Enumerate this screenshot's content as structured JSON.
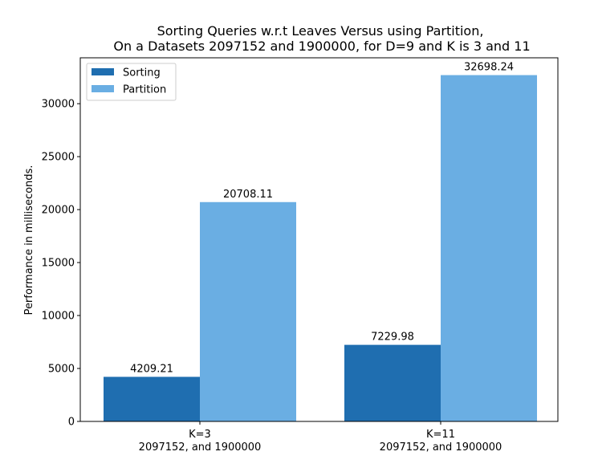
{
  "chart_data": {
    "type": "bar",
    "title": "Sorting Queries w.r.t Leaves Versus using Partition,",
    "subtitle": "On a Datasets 2097152 and 1900000, for D=9 and K is 3 and 11",
    "xlabel": "",
    "ylabel": "Performance in milliseconds.",
    "ylim": [
      0,
      34333
    ],
    "yticks": [
      0,
      5000,
      10000,
      15000,
      20000,
      25000,
      30000
    ],
    "categories": [
      {
        "line1": "K=3",
        "line2": "2097152, and 1900000"
      },
      {
        "line1": "K=11",
        "line2": "2097152, and 1900000"
      }
    ],
    "series": [
      {
        "name": "Sorting",
        "color": "#1f6eb0",
        "values": [
          4209.21,
          7229.98
        ],
        "labels": [
          "4209.21",
          "7229.98"
        ]
      },
      {
        "name": "Partition",
        "color": "#6aaee3",
        "values": [
          20708.11,
          32698.24
        ],
        "labels": [
          "20708.11",
          "32698.24"
        ]
      }
    ],
    "legend_position": "top-left",
    "grid": false
  }
}
